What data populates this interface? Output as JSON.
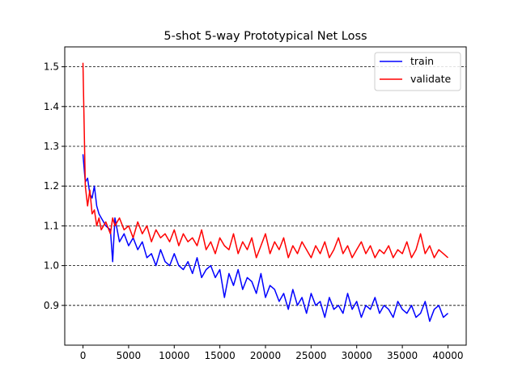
{
  "chart_data": {
    "type": "line",
    "title": "5-shot 5-way Prototypical Net Loss",
    "xlabel": "",
    "ylabel": "",
    "xlim": [
      -2000,
      42000
    ],
    "ylim": [
      0.8,
      1.55
    ],
    "xticks": [
      0,
      5000,
      10000,
      15000,
      20000,
      25000,
      30000,
      35000,
      40000
    ],
    "yticks": [
      0.9,
      1.0,
      1.1,
      1.2,
      1.3,
      1.4,
      1.5
    ],
    "ytick_labels": [
      "0.9",
      "1.0",
      "1.1",
      "1.2",
      "1.3",
      "1.4",
      "1.5"
    ],
    "grid": "horizontal dashed",
    "legend_position": "top-right",
    "series": [
      {
        "name": "train",
        "color": "#0000ff",
        "x": [
          0,
          250,
          500,
          750,
          1000,
          1250,
          1500,
          1750,
          2000,
          2500,
          3000,
          3250,
          3500,
          4000,
          4500,
          5000,
          5500,
          6000,
          6500,
          7000,
          7500,
          8000,
          8500,
          9000,
          9500,
          10000,
          10500,
          11000,
          11500,
          12000,
          12500,
          13000,
          13500,
          14000,
          14500,
          15000,
          15500,
          16000,
          16500,
          17000,
          17500,
          18000,
          18500,
          19000,
          19500,
          20000,
          20500,
          21000,
          21500,
          22000,
          22500,
          23000,
          23500,
          24000,
          24500,
          25000,
          25500,
          26000,
          26500,
          27000,
          27500,
          28000,
          28500,
          29000,
          29500,
          30000,
          30500,
          31000,
          31500,
          32000,
          32500,
          33000,
          33500,
          34000,
          34500,
          35000,
          35500,
          36000,
          36500,
          37000,
          37500,
          38000,
          38500,
          39000,
          39500,
          40000
        ],
        "y": [
          1.28,
          1.21,
          1.22,
          1.18,
          1.17,
          1.2,
          1.15,
          1.13,
          1.12,
          1.1,
          1.09,
          1.01,
          1.12,
          1.06,
          1.08,
          1.05,
          1.07,
          1.04,
          1.06,
          1.02,
          1.03,
          1.0,
          1.04,
          1.01,
          1.0,
          1.03,
          1.0,
          0.99,
          1.01,
          0.98,
          1.02,
          0.97,
          0.99,
          1.0,
          0.97,
          0.99,
          0.92,
          0.98,
          0.95,
          0.99,
          0.94,
          0.97,
          0.96,
          0.93,
          0.98,
          0.92,
          0.95,
          0.94,
          0.91,
          0.93,
          0.89,
          0.94,
          0.9,
          0.92,
          0.88,
          0.93,
          0.9,
          0.91,
          0.87,
          0.92,
          0.89,
          0.9,
          0.88,
          0.93,
          0.89,
          0.91,
          0.87,
          0.9,
          0.89,
          0.92,
          0.88,
          0.9,
          0.89,
          0.87,
          0.91,
          0.89,
          0.88,
          0.9,
          0.87,
          0.88,
          0.91,
          0.86,
          0.89,
          0.9,
          0.87,
          0.88
        ]
      },
      {
        "name": "validate",
        "color": "#ff0000",
        "x": [
          0,
          250,
          500,
          750,
          1000,
          1250,
          1500,
          1750,
          2000,
          2500,
          3000,
          3250,
          3500,
          4000,
          4500,
          5000,
          5500,
          6000,
          6500,
          7000,
          7500,
          8000,
          8500,
          9000,
          9500,
          10000,
          10500,
          11000,
          11500,
          12000,
          12500,
          13000,
          13500,
          14000,
          14500,
          15000,
          15500,
          16000,
          16500,
          17000,
          17500,
          18000,
          18500,
          19000,
          19500,
          20000,
          20500,
          21000,
          21500,
          22000,
          22500,
          23000,
          23500,
          24000,
          24500,
          25000,
          25500,
          26000,
          26500,
          27000,
          27500,
          28000,
          28500,
          29000,
          29500,
          30000,
          30500,
          31000,
          31500,
          32000,
          32500,
          33000,
          33500,
          34000,
          34500,
          35000,
          35500,
          36000,
          36500,
          37000,
          37500,
          38000,
          38500,
          39000,
          39500,
          40000
        ],
        "y": [
          1.51,
          1.2,
          1.15,
          1.19,
          1.13,
          1.14,
          1.1,
          1.12,
          1.09,
          1.11,
          1.08,
          1.12,
          1.1,
          1.12,
          1.09,
          1.1,
          1.07,
          1.11,
          1.08,
          1.1,
          1.06,
          1.09,
          1.07,
          1.08,
          1.06,
          1.09,
          1.05,
          1.08,
          1.06,
          1.07,
          1.05,
          1.09,
          1.04,
          1.06,
          1.03,
          1.07,
          1.05,
          1.04,
          1.08,
          1.03,
          1.06,
          1.04,
          1.07,
          1.02,
          1.05,
          1.08,
          1.03,
          1.06,
          1.04,
          1.07,
          1.02,
          1.05,
          1.03,
          1.06,
          1.04,
          1.02,
          1.05,
          1.03,
          1.06,
          1.02,
          1.04,
          1.07,
          1.03,
          1.05,
          1.02,
          1.04,
          1.06,
          1.03,
          1.05,
          1.02,
          1.04,
          1.03,
          1.05,
          1.02,
          1.04,
          1.03,
          1.06,
          1.02,
          1.04,
          1.08,
          1.03,
          1.05,
          1.02,
          1.04,
          1.03,
          1.02
        ]
      }
    ]
  }
}
